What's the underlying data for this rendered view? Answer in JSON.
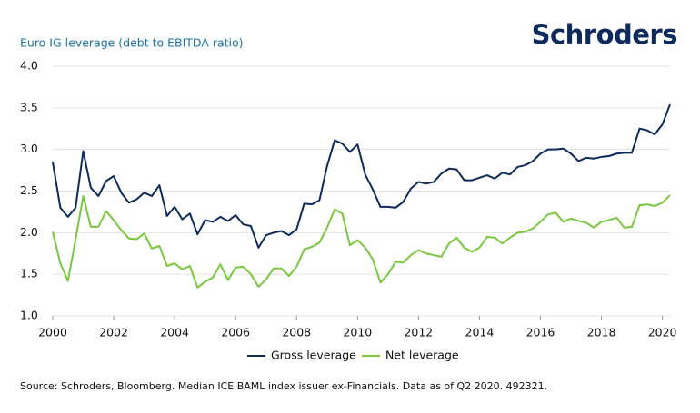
{
  "brand": "Schroders",
  "chart_data": {
    "type": "line",
    "title": "Euro IG leverage (debt to EBITDA ratio)",
    "x": [
      2000,
      2000.25,
      2000.5,
      2000.75,
      2001,
      2001.25,
      2001.5,
      2001.75,
      2002,
      2002.25,
      2002.5,
      2002.75,
      2003,
      2003.25,
      2003.5,
      2003.75,
      2004,
      2004.25,
      2004.5,
      2004.75,
      2005,
      2005.25,
      2005.5,
      2005.75,
      2006,
      2006.25,
      2006.5,
      2006.75,
      2007,
      2007.25,
      2007.5,
      2007.75,
      2008,
      2008.25,
      2008.5,
      2008.75,
      2009,
      2009.25,
      2009.5,
      2009.75,
      2010,
      2010.25,
      2010.5,
      2010.75,
      2011,
      2011.25,
      2011.5,
      2011.75,
      2012,
      2012.25,
      2012.5,
      2012.75,
      2013,
      2013.25,
      2013.5,
      2013.75,
      2014,
      2014.25,
      2014.5,
      2014.75,
      2015,
      2015.25,
      2015.5,
      2015.75,
      2016,
      2016.25,
      2016.5,
      2016.75,
      2017,
      2017.25,
      2017.5,
      2017.75,
      2018,
      2018.25,
      2018.5,
      2018.75,
      2019,
      2019.25,
      2019.5,
      2019.75,
      2020,
      2020.25
    ],
    "series": [
      {
        "name": "Gross leverage",
        "color": "#0d2a5c",
        "values": [
          2.85,
          2.3,
          2.19,
          2.3,
          2.98,
          2.54,
          2.44,
          2.62,
          2.68,
          2.48,
          2.36,
          2.4,
          2.48,
          2.44,
          2.57,
          2.2,
          2.31,
          2.16,
          2.23,
          1.98,
          2.15,
          2.13,
          2.19,
          2.14,
          2.21,
          2.1,
          2.08,
          1.82,
          1.97,
          2.0,
          2.02,
          1.97,
          2.04,
          2.35,
          2.34,
          2.39,
          2.8,
          3.11,
          3.07,
          2.97,
          3.06,
          2.7,
          2.52,
          2.31,
          2.31,
          2.3,
          2.37,
          2.53,
          2.61,
          2.59,
          2.61,
          2.71,
          2.77,
          2.76,
          2.63,
          2.63,
          2.66,
          2.69,
          2.65,
          2.72,
          2.7,
          2.79,
          2.81,
          2.86,
          2.95,
          3.0,
          3.0,
          3.01,
          2.95,
          2.86,
          2.9,
          2.89,
          2.91,
          2.92,
          2.95,
          2.96,
          2.96,
          3.25,
          3.23,
          3.18,
          3.3,
          3.54
        ]
      },
      {
        "name": "Net leverage",
        "color": "#78c83c",
        "values": [
          2.01,
          1.63,
          1.42,
          1.92,
          2.44,
          2.07,
          2.07,
          2.26,
          2.15,
          2.03,
          1.93,
          1.92,
          1.99,
          1.81,
          1.84,
          1.6,
          1.63,
          1.56,
          1.6,
          1.34,
          1.41,
          1.46,
          1.62,
          1.43,
          1.58,
          1.59,
          1.5,
          1.35,
          1.44,
          1.57,
          1.57,
          1.48,
          1.59,
          1.8,
          1.83,
          1.88,
          2.06,
          2.28,
          2.23,
          1.85,
          1.91,
          1.82,
          1.68,
          1.4,
          1.5,
          1.65,
          1.64,
          1.73,
          1.79,
          1.75,
          1.73,
          1.71,
          1.87,
          1.94,
          1.82,
          1.77,
          1.82,
          1.95,
          1.94,
          1.87,
          1.94,
          2.0,
          2.01,
          2.05,
          2.13,
          2.22,
          2.24,
          2.13,
          2.17,
          2.14,
          2.12,
          2.06,
          2.13,
          2.15,
          2.18,
          2.06,
          2.07,
          2.33,
          2.34,
          2.32,
          2.36,
          2.45
        ]
      }
    ],
    "xlim": [
      2000,
      2020.25
    ],
    "xticks": [
      2000,
      2002,
      2004,
      2006,
      2008,
      2010,
      2012,
      2014,
      2016,
      2018,
      2020
    ],
    "ylim": [
      1,
      4
    ],
    "yticks": [
      {
        "value": 1,
        "label": "1.0"
      },
      {
        "value": 1.5,
        "label": "1.5"
      },
      {
        "value": 2,
        "label": "2.0"
      },
      {
        "value": 2.5,
        "label": "2.5"
      },
      {
        "value": 3,
        "label": "3.0"
      },
      {
        "value": 3.5,
        "label": "3.5"
      },
      {
        "value": 4,
        "label": "4.0"
      }
    ],
    "grid": true,
    "legend": "bottom",
    "source": "Source: Schroders, Bloomberg. Median ICE BAML index issuer ex-Financials. Data as of Q2 2020. 492321."
  }
}
